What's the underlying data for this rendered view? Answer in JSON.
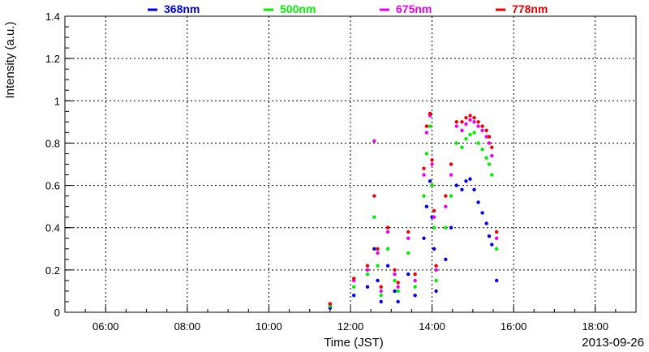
{
  "chart_data": {
    "type": "scatter",
    "xlabel": "Time (JST)",
    "ylabel": "Intensity (a.u.)",
    "date_label": "2013-09-26",
    "xlim": [
      "05:00",
      "19:00"
    ],
    "ylim": [
      0,
      1.4
    ],
    "x_ticks": [
      "06:00",
      "08:00",
      "10:00",
      "12:00",
      "14:00",
      "16:00",
      "18:00"
    ],
    "y_ticks": [
      "0",
      "0.2",
      "0.4",
      "0.6",
      "0.8",
      "1",
      "1.2",
      "1.4"
    ],
    "grid": true,
    "legend_position": "top",
    "series": [
      {
        "name": "368nm",
        "color": "#0000ee",
        "x": [
          "11:30",
          "12:05",
          "12:25",
          "12:35",
          "12:40",
          "12:45",
          "12:55",
          "13:05",
          "13:10",
          "13:25",
          "13:35",
          "13:48",
          "13:52",
          "13:57",
          "14:00",
          "14:03",
          "14:06",
          "14:20",
          "14:28",
          "14:36",
          "14:44",
          "14:50",
          "14:56",
          "15:02",
          "15:08",
          "15:14",
          "15:20",
          "15:24",
          "15:28",
          "15:35"
        ],
        "y": [
          0.02,
          0.08,
          0.12,
          0.3,
          0.15,
          0.05,
          0.22,
          0.1,
          0.05,
          0.18,
          0.08,
          0.35,
          0.5,
          0.62,
          0.45,
          0.3,
          0.1,
          0.25,
          0.4,
          0.6,
          0.58,
          0.62,
          0.63,
          0.58,
          0.52,
          0.47,
          0.42,
          0.36,
          0.32,
          0.15
        ]
      },
      {
        "name": "500nm",
        "color": "#00ee00",
        "x": [
          "11:30",
          "12:05",
          "12:25",
          "12:35",
          "12:40",
          "12:45",
          "12:55",
          "13:05",
          "13:10",
          "13:25",
          "13:35",
          "13:48",
          "13:52",
          "13:57",
          "14:00",
          "14:03",
          "14:06",
          "14:20",
          "14:28",
          "14:36",
          "14:44",
          "14:50",
          "14:56",
          "15:02",
          "15:08",
          "15:14",
          "15:20",
          "15:24",
          "15:28",
          "15:35"
        ],
        "y": [
          0.03,
          0.12,
          0.18,
          0.45,
          0.22,
          0.08,
          0.3,
          0.15,
          0.1,
          0.28,
          0.12,
          0.55,
          0.75,
          0.88,
          0.6,
          0.4,
          0.15,
          0.4,
          0.55,
          0.8,
          0.78,
          0.82,
          0.84,
          0.85,
          0.8,
          0.77,
          0.73,
          0.7,
          0.65,
          0.3
        ]
      },
      {
        "name": "675nm",
        "color": "#ee00ee",
        "x": [
          "11:30",
          "12:05",
          "12:25",
          "12:35",
          "12:40",
          "12:45",
          "12:55",
          "13:05",
          "13:10",
          "13:25",
          "13:35",
          "13:48",
          "13:52",
          "13:57",
          "14:00",
          "14:03",
          "14:06",
          "14:20",
          "14:28",
          "14:36",
          "14:44",
          "14:50",
          "14:56",
          "15:02",
          "15:08",
          "15:14",
          "15:20",
          "15:24",
          "15:28",
          "15:35"
        ],
        "y": [
          0.04,
          0.15,
          0.2,
          0.81,
          0.28,
          0.1,
          0.38,
          0.18,
          0.12,
          0.35,
          0.15,
          0.65,
          0.85,
          0.93,
          0.7,
          0.45,
          0.2,
          0.5,
          0.65,
          0.88,
          0.86,
          0.89,
          0.91,
          0.9,
          0.88,
          0.86,
          0.83,
          0.8,
          0.74,
          0.35
        ]
      },
      {
        "name": "778nm",
        "color": "#ee0000",
        "x": [
          "11:30",
          "12:05",
          "12:25",
          "12:35",
          "12:40",
          "12:45",
          "12:55",
          "13:05",
          "13:10",
          "13:25",
          "13:35",
          "13:48",
          "13:52",
          "13:57",
          "14:00",
          "14:03",
          "14:06",
          "14:20",
          "14:28",
          "14:36",
          "14:44",
          "14:50",
          "14:56",
          "15:02",
          "15:08",
          "15:14",
          "15:20",
          "15:24",
          "15:28",
          "15:35"
        ],
        "y": [
          0.04,
          0.16,
          0.22,
          0.55,
          0.3,
          0.12,
          0.4,
          0.2,
          0.14,
          0.38,
          0.18,
          0.68,
          0.88,
          0.94,
          0.72,
          0.48,
          0.22,
          0.55,
          0.7,
          0.9,
          0.9,
          0.92,
          0.93,
          0.92,
          0.9,
          0.88,
          0.86,
          0.83,
          0.78,
          0.38
        ]
      }
    ]
  }
}
